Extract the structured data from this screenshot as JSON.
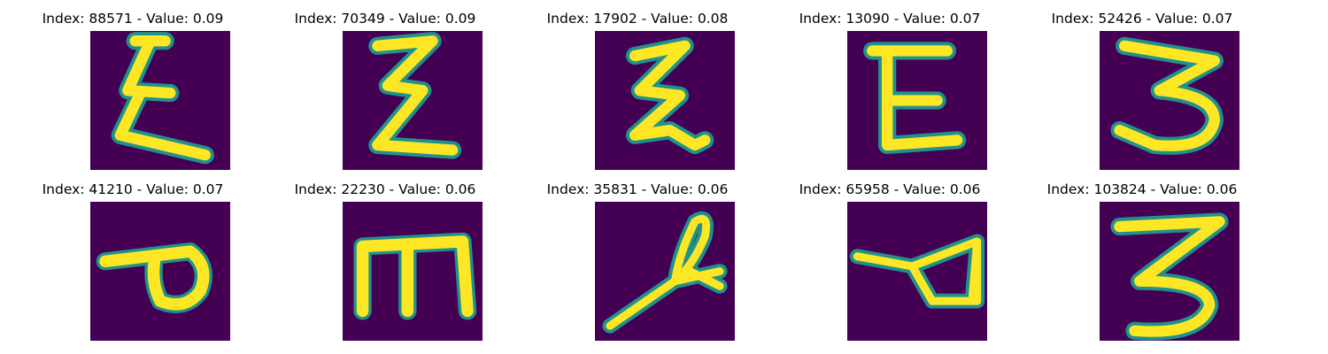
{
  "colors": {
    "background": "#440154",
    "stroke_edge": "#21918c",
    "stroke_core": "#fde725"
  },
  "panels": [
    {
      "title": "Index: 88571 - Value: 0.09",
      "glyph": "E-like handwritten character"
    },
    {
      "title": "Index: 70349 - Value: 0.09",
      "glyph": "E-like handwritten character"
    },
    {
      "title": "Index: 17902 - Value: 0.08",
      "glyph": "E-like handwritten character"
    },
    {
      "title": "Index: 13090 - Value: 0.07",
      "glyph": "E handwritten character"
    },
    {
      "title": "Index: 52426 - Value: 0.07",
      "glyph": "3 handwritten character"
    },
    {
      "title": "Index: 41210 - Value: 0.07",
      "glyph": "P-like handwritten character"
    },
    {
      "title": "Index: 22230 - Value: 0.06",
      "glyph": "m-like handwritten character"
    },
    {
      "title": "Index: 35831 - Value: 0.06",
      "glyph": "slanted loop stroke character"
    },
    {
      "title": "Index: 65958 - Value: 0.06",
      "glyph": "loop with tail character"
    },
    {
      "title": "Index: 103824 - Value: 0.06",
      "glyph": "3 handwritten character"
    }
  ]
}
